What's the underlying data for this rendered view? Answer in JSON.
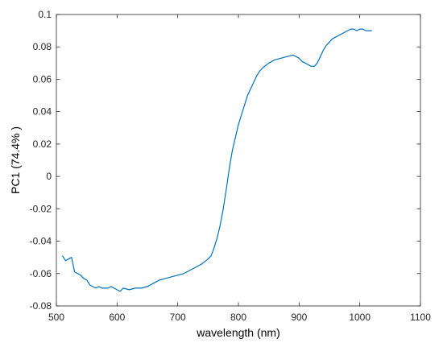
{
  "chart_data": {
    "type": "line",
    "xlabel": "wavelength (nm)",
    "ylabel": "PC1 (74.4% )",
    "xlim": [
      500,
      1100
    ],
    "ylim": [
      -0.08,
      0.1
    ],
    "xticks": [
      500,
      600,
      700,
      800,
      900,
      1000,
      1100
    ],
    "yticks": [
      -0.08,
      -0.06,
      -0.04,
      -0.02,
      0,
      0.02,
      0.04,
      0.06,
      0.08,
      0.1
    ],
    "ytick_labels": [
      "-0.08",
      "-0.06",
      "-0.04",
      "-0.02",
      "0",
      "0.02",
      "0.04",
      "0.06",
      "0.08",
      "0.1"
    ],
    "grid": false,
    "line_color": "#0072BD",
    "series": [
      {
        "x": [
          510,
          515,
          520,
          525,
          530,
          535,
          540,
          545,
          550,
          555,
          560,
          565,
          570,
          575,
          580,
          585,
          590,
          595,
          600,
          605,
          610,
          620,
          630,
          640,
          650,
          660,
          670,
          680,
          690,
          700,
          710,
          720,
          730,
          740,
          750,
          755,
          760,
          765,
          770,
          775,
          780,
          785,
          790,
          795,
          800,
          805,
          810,
          815,
          820,
          825,
          830,
          835,
          840,
          850,
          860,
          870,
          880,
          890,
          895,
          900,
          905,
          910,
          915,
          920,
          925,
          930,
          935,
          940,
          945,
          950,
          955,
          960,
          965,
          970,
          975,
          980,
          985,
          990,
          995,
          1000,
          1005,
          1010,
          1015,
          1020
        ],
        "y": [
          -0.049,
          -0.052,
          -0.051,
          -0.05,
          -0.059,
          -0.06,
          -0.061,
          -0.063,
          -0.064,
          -0.067,
          -0.068,
          -0.069,
          -0.068,
          -0.069,
          -0.069,
          -0.069,
          -0.068,
          -0.069,
          -0.07,
          -0.071,
          -0.069,
          -0.07,
          -0.069,
          -0.069,
          -0.068,
          -0.066,
          -0.064,
          -0.063,
          -0.062,
          -0.061,
          -0.06,
          -0.058,
          -0.056,
          -0.054,
          -0.051,
          -0.049,
          -0.044,
          -0.038,
          -0.03,
          -0.02,
          -0.008,
          0.005,
          0.016,
          0.024,
          0.032,
          0.038,
          0.044,
          0.05,
          0.054,
          0.058,
          0.062,
          0.065,
          0.067,
          0.07,
          0.072,
          0.073,
          0.074,
          0.075,
          0.074,
          0.073,
          0.071,
          0.07,
          0.069,
          0.068,
          0.068,
          0.07,
          0.074,
          0.078,
          0.081,
          0.083,
          0.085,
          0.086,
          0.087,
          0.088,
          0.089,
          0.09,
          0.091,
          0.091,
          0.09,
          0.091,
          0.091,
          0.09,
          0.09,
          0.09
        ]
      }
    ]
  }
}
